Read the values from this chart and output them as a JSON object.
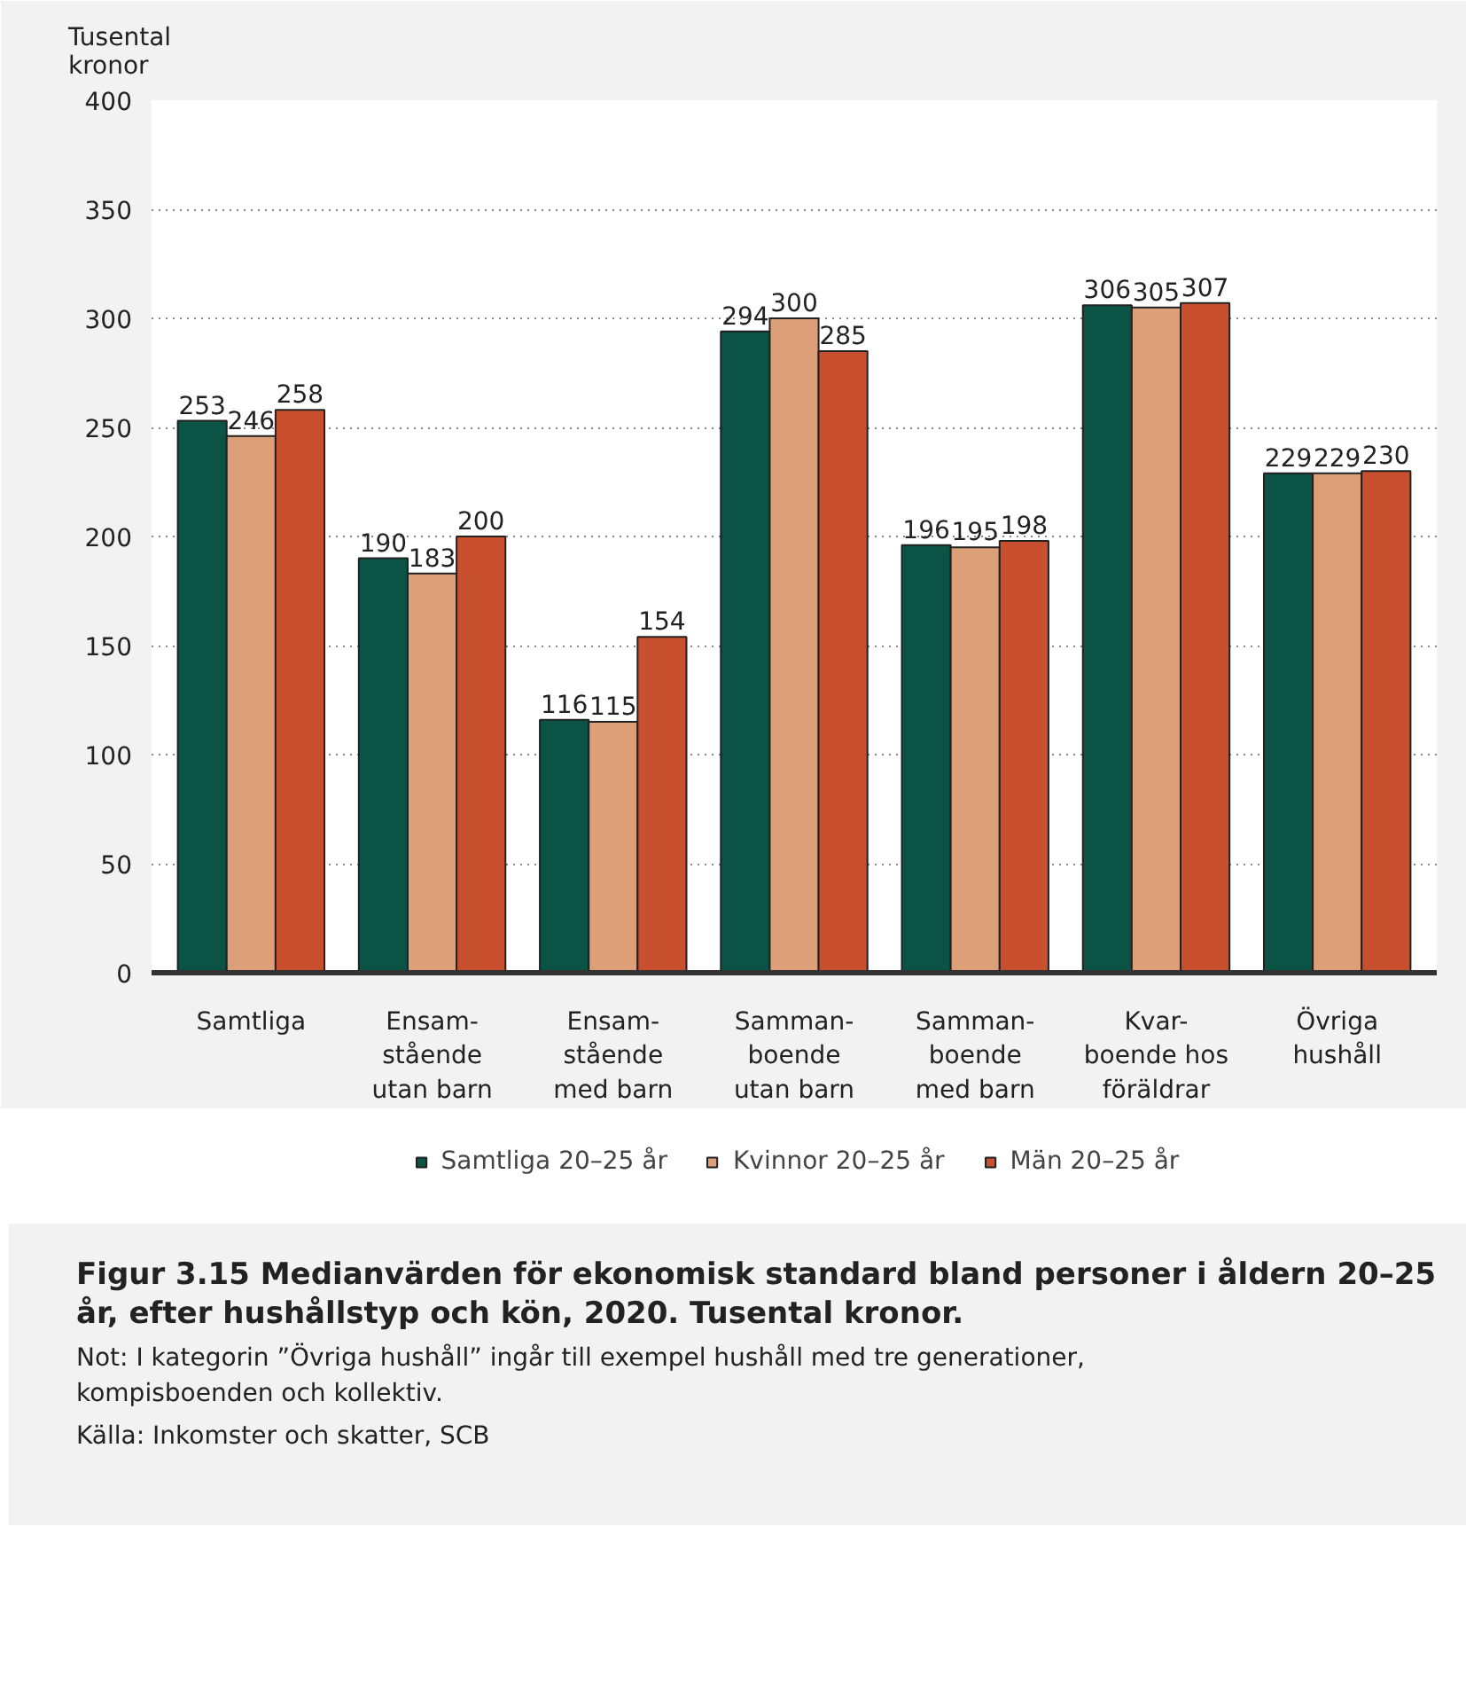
{
  "chart_data": {
    "type": "bar",
    "title": "Figur 3.15 Medianvärden för ekonomisk standard bland personer i åldern 20–25 år, efter hushållstyp och kön, 2020. Tusental kronor.",
    "ylabel": "Tusental\nkronor",
    "categories": [
      "Samtliga",
      "Ensam-\nstående\nutan barn",
      "Ensam-\nstående\nmed barn",
      "Samman-\nboende\nutan barn",
      "Samman-\nboende\nmed barn",
      "Kvar-\nboende hos\nföräldrar",
      "Övriga\nhushåll"
    ],
    "series": [
      {
        "name": "Samtliga 20–25 år",
        "color": "#0b5345",
        "values": [
          253,
          190,
          116,
          294,
          196,
          306,
          229
        ]
      },
      {
        "name": "Kvinnor 20–25 år",
        "color": "#dc9f78",
        "values": [
          246,
          183,
          115,
          300,
          195,
          305,
          229
        ]
      },
      {
        "name": "Män 20–25 år",
        "color": "#c9502e",
        "values": [
          258,
          200,
          154,
          285,
          198,
          307,
          230
        ]
      }
    ],
    "ylim": [
      0,
      400
    ],
    "yticks": [
      0,
      50,
      100,
      150,
      200,
      250,
      300,
      350,
      400
    ],
    "grid": "y",
    "legend": "bottom",
    "data_labels": true,
    "annotations": [
      "Not: I kategorin ”Övriga hushåll” ingår till exempel hushåll med tre generationer,\nkompisboenden och kollektiv.",
      "Källa: Inkomster och skatter, SCB"
    ]
  }
}
